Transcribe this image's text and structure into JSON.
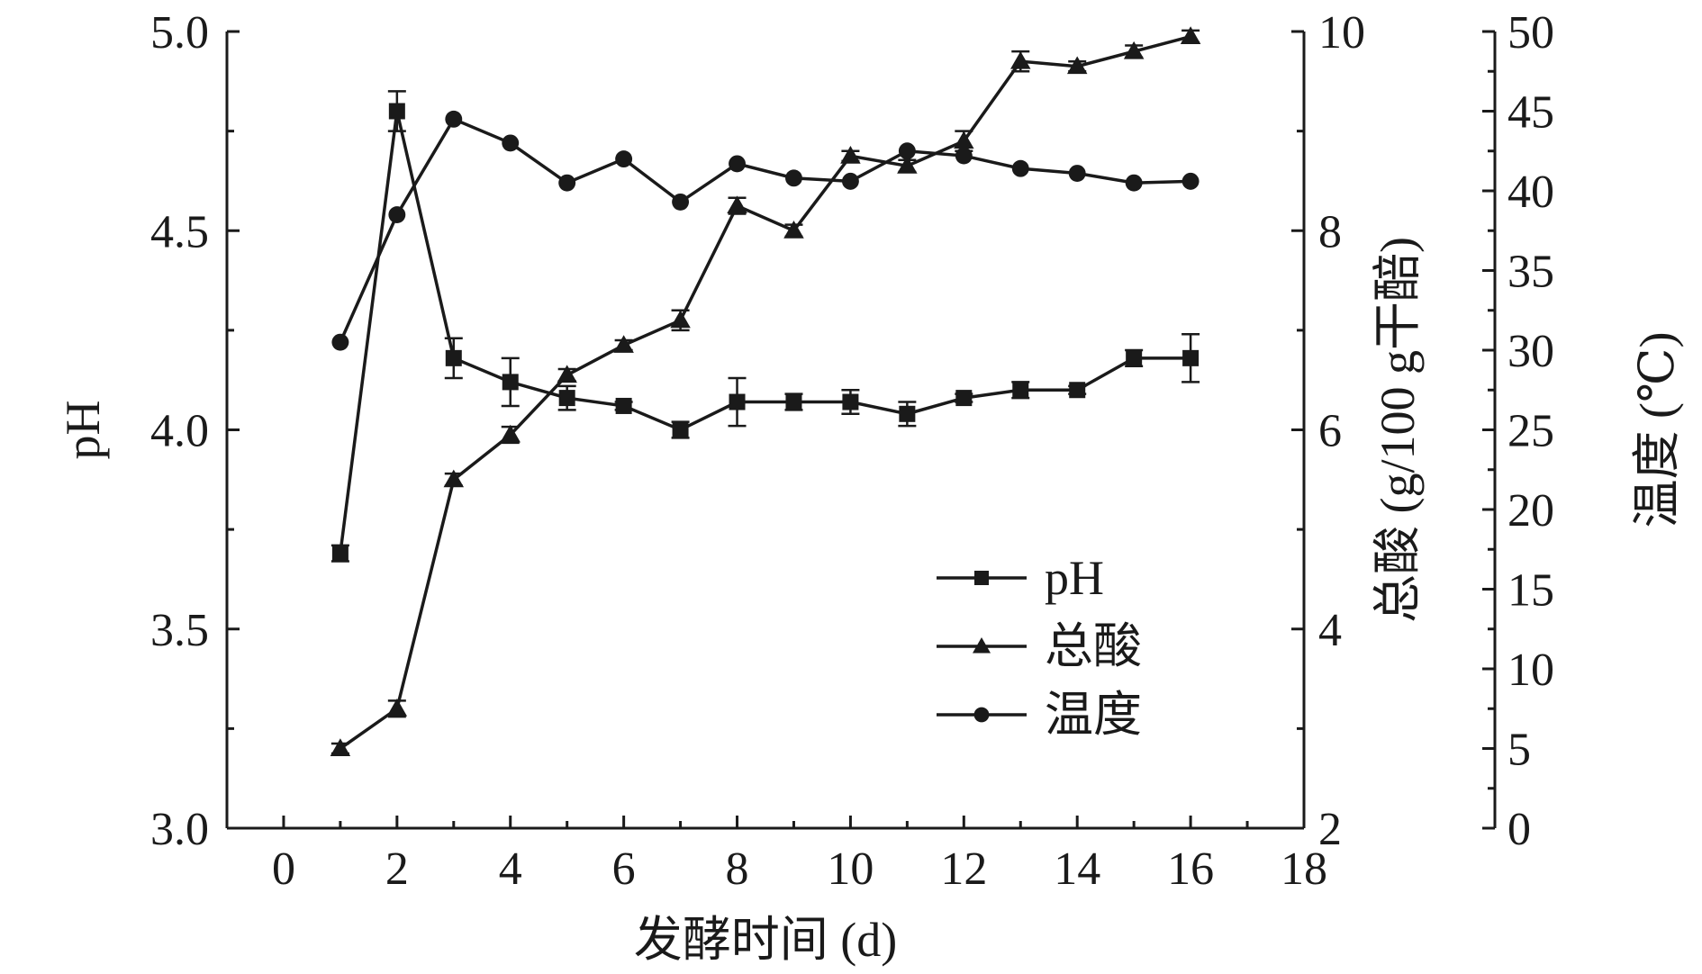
{
  "chart_data": {
    "type": "line",
    "xlabel": "发酵时间 (d)",
    "ylabel_left": "pH",
    "ylabel_right1": "总酸 (g/100 g干醅)",
    "ylabel_right2": "温度 (℃)",
    "xlim": [
      -1,
      18
    ],
    "ylim_left": [
      3.0,
      5.0
    ],
    "ylim_right1": [
      2,
      10
    ],
    "ylim_right2": [
      0,
      50
    ],
    "x_ticks": [
      "0",
      "2",
      "4",
      "6",
      "8",
      "10",
      "12",
      "14",
      "16",
      "18"
    ],
    "y_left_ticks": [
      "3.0",
      "3.5",
      "4.0",
      "4.5",
      "5.0"
    ],
    "y_right1_ticks": [
      "2",
      "4",
      "6",
      "8",
      "10"
    ],
    "y_right2_ticks": [
      "0",
      "5",
      "10",
      "15",
      "20",
      "25",
      "30",
      "35",
      "40",
      "45",
      "50"
    ],
    "legend_position": "center-right",
    "x": [
      1,
      2,
      3,
      4,
      5,
      6,
      7,
      8,
      9,
      10,
      11,
      12,
      13,
      14,
      15,
      16
    ],
    "series": [
      {
        "name": "pH",
        "axis": "left",
        "marker": "square",
        "values": [
          3.69,
          4.8,
          4.18,
          4.12,
          4.08,
          4.06,
          4.0,
          4.07,
          4.07,
          4.07,
          4.04,
          4.08,
          4.1,
          4.1,
          4.18,
          4.18
        ],
        "errors": [
          0.02,
          0.05,
          0.05,
          0.06,
          0.03,
          0.01,
          0.02,
          0.06,
          0.02,
          0.03,
          0.03,
          0.01,
          0.02,
          0.01,
          0.02,
          0.06
        ]
      },
      {
        "name": "总酸",
        "axis": "right1",
        "marker": "triangle",
        "values": [
          2.8,
          3.2,
          5.5,
          5.95,
          6.55,
          6.85,
          7.1,
          8.25,
          8.0,
          8.75,
          8.65,
          8.9,
          9.7,
          9.65,
          9.8,
          9.95
        ],
        "errors": [
          0.05,
          0.08,
          0.06,
          0.08,
          0.06,
          0.05,
          0.1,
          0.08,
          0.06,
          0.05,
          0.06,
          0.1,
          0.1,
          0.05,
          0.06,
          0.06
        ]
      },
      {
        "name": "温度",
        "axis": "right2",
        "marker": "circle",
        "values": [
          30.5,
          38.5,
          44.5,
          43.0,
          40.5,
          42.0,
          39.3,
          41.7,
          40.8,
          40.6,
          42.5,
          42.2,
          41.4,
          41.1,
          40.5,
          40.6
        ],
        "errors": []
      }
    ]
  }
}
